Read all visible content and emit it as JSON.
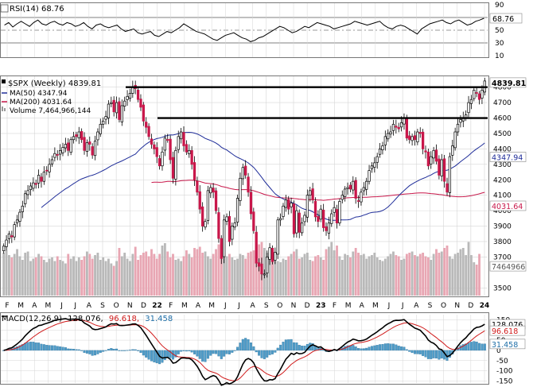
{
  "colors": {
    "up": "#000000",
    "down": "#c8174a",
    "ma50": "#1f2d99",
    "ma200": "#c8174a",
    "vol_up": "#b9b9b9",
    "vol_down": "#e8a6b3",
    "macd_hist": "#4f9cc8",
    "macd_line": "#000000",
    "signal_line": "#d01a1a",
    "grid": "#d6d6d6"
  },
  "chart_data": [
    {
      "type": "line",
      "panel": "RSI",
      "title": "RSI(14) 68.76",
      "last_value_tag": "68.76",
      "y_ticks": [
        90,
        70,
        50,
        30,
        10
      ],
      "ylim": [
        10,
        90
      ],
      "reference_lines": [
        70,
        50,
        30
      ],
      "series": [
        {
          "values": [
            58,
            62,
            55,
            60,
            64,
            60,
            56,
            62,
            66,
            60,
            58,
            62,
            64,
            60,
            58,
            62,
            60,
            56,
            58,
            62,
            56,
            52,
            58,
            60,
            56,
            54,
            56,
            58,
            52,
            48,
            50,
            52,
            46,
            44,
            46,
            48,
            42,
            40,
            44,
            48,
            46,
            50,
            54,
            60,
            56,
            52,
            48,
            46,
            44,
            40,
            36,
            34,
            38,
            42,
            44,
            46,
            42,
            38,
            36,
            32,
            34,
            38,
            40,
            44,
            48,
            52,
            56,
            54,
            50,
            46,
            48,
            52,
            56,
            54,
            58,
            62,
            60,
            58,
            56,
            52,
            54,
            56,
            58,
            60,
            64,
            62,
            60,
            58,
            60,
            62,
            64,
            58,
            54,
            52,
            56,
            58,
            56,
            52,
            48,
            44,
            52,
            56,
            60,
            62,
            64,
            66,
            62,
            60,
            64,
            66,
            62,
            58,
            60,
            64,
            66,
            68.76
          ]
        }
      ]
    },
    {
      "type": "candlestick",
      "panel": "Price",
      "title": "$SPX (Weekly) 4839.81",
      "last_value_tag": "4839.81",
      "legend": [
        {
          "label": "MA(50) 4347.94",
          "color": "#1f2d99"
        },
        {
          "label": "MA(200) 4031.64",
          "color": "#c8174a"
        },
        {
          "label": "Volume 7,464,966,144",
          "color": "#b9b9b9"
        }
      ],
      "y_ticks": [
        4800,
        4700,
        4600,
        4500,
        4400,
        4300,
        4200,
        4100,
        4000,
        3900,
        3800,
        3700,
        3500
      ],
      "ylim": [
        3450,
        4860
      ],
      "x_tick_labels": [
        "F",
        "M",
        "A",
        "M",
        "J",
        "J",
        "A",
        "S",
        "O",
        "N",
        "D",
        "22",
        "F",
        "M",
        "A",
        "M",
        "J",
        "J",
        "A",
        "S",
        "O",
        "N",
        "D",
        "23",
        "F",
        "M",
        "A",
        "M",
        "J",
        "J",
        "A",
        "S",
        "O",
        "N",
        "D",
        "24"
      ],
      "horizontal_lines": [
        4800,
        4600
      ],
      "side_tags": [
        {
          "label": "4347.94",
          "value": 4347.94,
          "color": "#1f2d99"
        },
        {
          "label": "4031.64",
          "value": 4031.64,
          "color": "#c8174a"
        },
        {
          "label": "7464966",
          "value": 3640,
          "color": "#555555"
        }
      ],
      "close": [
        3770,
        3810,
        3850,
        3830,
        3910,
        3940,
        3990,
        4030,
        4110,
        4130,
        4160,
        4180,
        4170,
        4230,
        4190,
        4250,
        4260,
        4300,
        4330,
        4370,
        4360,
        4390,
        4410,
        4430,
        4390,
        4460,
        4480,
        4480,
        4510,
        4460,
        4390,
        4440,
        4430,
        4360,
        4450,
        4510,
        4560,
        4580,
        4610,
        4690,
        4700,
        4640,
        4700,
        4590,
        4680,
        4710,
        4740,
        4760,
        4800,
        4790,
        4720,
        4670,
        4580,
        4540,
        4480,
        4430,
        4400,
        4350,
        4290,
        4380,
        4470,
        4460,
        4330,
        4210,
        4390,
        4480,
        4510,
        4420,
        4380,
        4390,
        4300,
        4200,
        4120,
        4010,
        3900,
        3930,
        4130,
        4150,
        4120,
        4000,
        3820,
        3690,
        3940,
        3960,
        3800,
        3900,
        3920,
        4080,
        4210,
        4280,
        4230,
        4120,
        3980,
        3870,
        3660,
        3640,
        3590,
        3590,
        3700,
        3760,
        3670,
        3730,
        3940,
        3950,
        4030,
        4070,
        4010,
        4050,
        3850,
        4000,
        3860,
        3920,
        3970,
        4100,
        4130,
        4070,
        3960,
        3930,
        4010,
        3890,
        3870,
        3920,
        3980,
        4020,
        3920,
        4060,
        4100,
        4140,
        4150,
        4140,
        4190,
        4080,
        4060,
        4120,
        4150,
        4190,
        4260,
        4290,
        4310,
        4350,
        4400,
        4420,
        4480,
        4500,
        4510,
        4560,
        4540,
        4530,
        4570,
        4600,
        4470,
        4460,
        4480,
        4460,
        4510,
        4500,
        4400,
        4380,
        4290,
        4350,
        4390,
        4320,
        4230,
        4330,
        4190,
        4120,
        4350,
        4420,
        4510,
        4560,
        4590,
        4600,
        4620,
        4700,
        4720,
        4780,
        4760,
        4720,
        4780,
        4840
      ]
    },
    {
      "type": "bar",
      "panel": "Volume",
      "series": [
        {
          "name": "Volume",
          "values": [
            72,
            76,
            68,
            64,
            70,
            78,
            66,
            60,
            72,
            74,
            58,
            62,
            64,
            70,
            66,
            60,
            56,
            62,
            64,
            58,
            66,
            60,
            58,
            54,
            70,
            62,
            66,
            58,
            64,
            60,
            66,
            74,
            70,
            62,
            68,
            72,
            60,
            64,
            58,
            62,
            54,
            50,
            58,
            80,
            66,
            72,
            62,
            58,
            70,
            82,
            60,
            68,
            72,
            74,
            66,
            78,
            70,
            62,
            70,
            84,
            88,
            74,
            64,
            70,
            60,
            62,
            58,
            66,
            76,
            70,
            64,
            80,
            78,
            82,
            72,
            74,
            66,
            62,
            70,
            78,
            86,
            84,
            72,
            66,
            70,
            64,
            60,
            62,
            70,
            68,
            62,
            72,
            74,
            76,
            82,
            86,
            90,
            80,
            72,
            70,
            62,
            64,
            58,
            56,
            62,
            60,
            66,
            70,
            74,
            78,
            62,
            64,
            70,
            72,
            60,
            58,
            66,
            68,
            64,
            60,
            78,
            82,
            90,
            76,
            84,
            66,
            60,
            70,
            68,
            64,
            74,
            80,
            72,
            68,
            70,
            62,
            66,
            68,
            72,
            64,
            60,
            58,
            62,
            66,
            70,
            74,
            68,
            66,
            60,
            62,
            70,
            72,
            74,
            68,
            66,
            70,
            72,
            66,
            64,
            60,
            70,
            78,
            72,
            74,
            80,
            84,
            66,
            62,
            70,
            72,
            78,
            80,
            68,
            90,
            68,
            56,
            52,
            70
          ]
        }
      ]
    },
    {
      "type": "line",
      "panel": "MACD",
      "title": "MACD(12,26,9) 128.076, 96.618, 31.458",
      "legend": [
        {
          "label": "MACD(12,26,9)",
          "color": "#000000"
        },
        {
          "label": "128.076,",
          "color": "#000000"
        },
        {
          "label": "96.618,",
          "color": "#d01a1a"
        },
        {
          "label": "31.458",
          "color": "#1f6fa8"
        }
      ],
      "y_ticks": [
        150,
        100,
        50,
        0,
        -50,
        -100,
        -150
      ],
      "ylim": [
        -160,
        175
      ],
      "value_tags": [
        {
          "label": "128.076",
          "value": 128.076,
          "color": "#000000"
        },
        {
          "label": "96.618",
          "value": 96.618,
          "color": "#d01a1a"
        },
        {
          "label": "31.458",
          "value": 31.458,
          "color": "#1f6fa8"
        }
      ]
    }
  ]
}
